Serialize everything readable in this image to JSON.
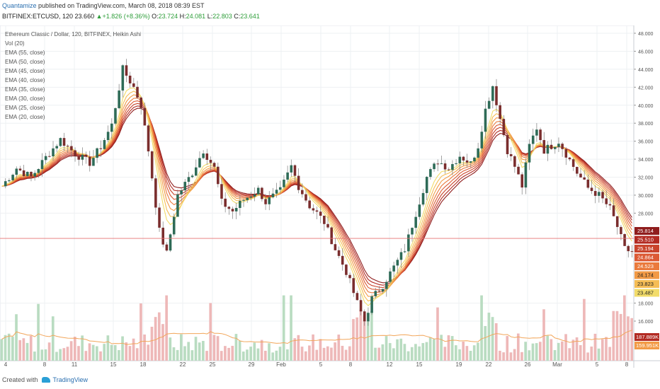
{
  "header": {
    "publisher": "Quantamize",
    "published_text": "published on TradingView.com, March 08, 2018 08:39 EST",
    "symbol": "BITFINEX:ETCUSD, 120",
    "last": "23.660",
    "change": "+1.826 (+8.36%)",
    "o_label": "O:",
    "o_val": "23.724",
    "h_label": "H:",
    "h_val": "24.081",
    "l_label": "L:",
    "l_val": "22.803",
    "c_label": "C:",
    "c_val": "23.641"
  },
  "legend": [
    "Ethereum Classic / Dollar, 120, BITFINEX, Heikin Ashi",
    "Vol (20)",
    "EMA (55, close)",
    "EMA (50, close)",
    "EMA (45, close)",
    "EMA (40, close)",
    "EMA (35, close)",
    "EMA (30, close)",
    "EMA (25, close)",
    "EMA (20, close)"
  ],
  "footer": {
    "created_with": "Created with",
    "brand": "TradingView"
  },
  "colors": {
    "up": "#2e6b57",
    "down": "#7a2d2d",
    "grid": "#eef0f3",
    "price_line": "#e57373",
    "volume_up": "#b9dcc1",
    "volume_down": "#eeb8b8",
    "vol_ma": "#f2a65a",
    "ema": [
      "#8f1d1d",
      "#b22a22",
      "#c9442c",
      "#dc5a34",
      "#ea7a3c",
      "#f29a45",
      "#f5bd55",
      "#f2dc6a"
    ]
  },
  "chart_data": {
    "type": "candlestick",
    "yaxis_ticks": [
      "48.000",
      "46.000",
      "44.000",
      "42.000",
      "40.000",
      "38.000",
      "36.000",
      "34.000",
      "32.000",
      "30.000",
      "28.000",
      "18.000",
      "16.000"
    ],
    "xaxis_ticks": [
      "4",
      "8",
      "11",
      "15",
      "18",
      "22",
      "25",
      "29",
      "Feb",
      "5",
      "8",
      "12",
      "15",
      "19",
      "22",
      "26",
      "Mar",
      "5",
      "8"
    ],
    "price_path": [
      [
        0,
        31.0
      ],
      [
        4,
        33.0
      ],
      [
        8,
        32.0
      ],
      [
        12,
        34.2
      ],
      [
        16,
        36.2
      ],
      [
        20,
        34.6
      ],
      [
        24,
        33.6
      ],
      [
        27,
        35.4
      ],
      [
        30,
        37.8
      ],
      [
        33,
        44.0
      ],
      [
        36,
        42.0
      ],
      [
        38,
        40.0
      ],
      [
        40,
        35.0
      ],
      [
        43,
        26.0
      ],
      [
        45,
        23.5
      ],
      [
        48,
        30.0
      ],
      [
        52,
        32.5
      ],
      [
        55,
        35.0
      ],
      [
        58,
        33.0
      ],
      [
        60,
        29.2
      ],
      [
        63,
        28.2
      ],
      [
        66,
        29.5
      ],
      [
        70,
        30.6
      ],
      [
        72,
        29.2
      ],
      [
        76,
        30.5
      ],
      [
        79,
        33.2
      ],
      [
        81,
        31.0
      ],
      [
        84,
        28.8
      ],
      [
        86,
        28.0
      ],
      [
        88,
        27.0
      ],
      [
        91,
        24.0
      ],
      [
        94,
        21.5
      ],
      [
        97,
        18.0
      ],
      [
        99,
        16.0
      ],
      [
        101,
        18.5
      ],
      [
        104,
        20.0
      ],
      [
        107,
        22.0
      ],
      [
        110,
        24.0
      ],
      [
        113,
        28.0
      ],
      [
        116,
        32.0
      ],
      [
        119,
        33.8
      ],
      [
        122,
        33.0
      ],
      [
        125,
        34.4
      ],
      [
        128,
        33.5
      ],
      [
        130,
        35.5
      ],
      [
        132,
        39.5
      ],
      [
        134,
        42.2
      ],
      [
        136,
        38.5
      ],
      [
        138,
        35.0
      ],
      [
        140,
        33.2
      ],
      [
        142,
        31.0
      ],
      [
        144,
        35.5
      ],
      [
        146,
        37.5
      ],
      [
        148,
        35.0
      ],
      [
        150,
        35.5
      ],
      [
        152,
        36.0
      ],
      [
        154,
        34.6
      ],
      [
        157,
        32.5
      ],
      [
        160,
        30.8
      ],
      [
        163,
        30.0
      ],
      [
        166,
        28.5
      ],
      [
        168,
        26.5
      ],
      [
        170,
        24.0
      ],
      [
        172,
        23.7
      ]
    ],
    "ema_periods": [
      55,
      50,
      45,
      40,
      35,
      30,
      25,
      20
    ],
    "price_labels": [
      {
        "value": 25.814,
        "text": "25.814",
        "color": "#8f1d1d"
      },
      {
        "value": 25.51,
        "text": "25.510",
        "color": "#b22a22"
      },
      {
        "value": 25.194,
        "text": "25.194",
        "color": "#c9442c"
      },
      {
        "value": 24.864,
        "text": "24.864",
        "color": "#dc5a34"
      },
      {
        "value": 24.523,
        "text": "24.523",
        "color": "#ea7a3c"
      },
      {
        "value": 24.174,
        "text": "24.174",
        "color": "#f29a45"
      },
      {
        "value": 23.823,
        "text": "23.823",
        "color": "#f5bd55"
      },
      {
        "value": 23.487,
        "text": "23.487",
        "color": "#f2dc6a"
      }
    ],
    "current_price": 23.66,
    "volume_labels": [
      {
        "text": "187.889K",
        "color": "#b22a22"
      },
      {
        "text": "159.951K",
        "color": "#f29a45"
      }
    ]
  }
}
